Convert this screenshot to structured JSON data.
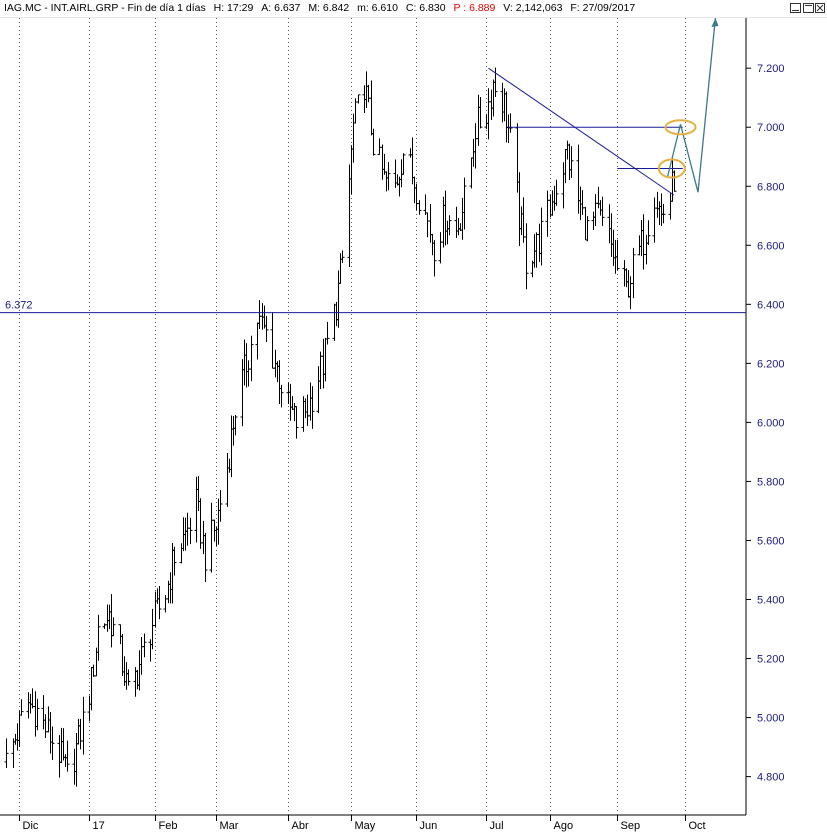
{
  "header": {
    "symbol": "IAG.MC - INT.AIRL.GRP - Fin de día 1 días",
    "h": "H: 17:29",
    "a": "A: 6.637",
    "m": "M: 6.842",
    "mn": "m: 6.610",
    "c": "C: 6.830",
    "p": "P : 6.889",
    "v": "V: 2,142,063",
    "f": "F: 27/09/2017"
  },
  "window_controls": [
    "minimize-icon",
    "restore-icon",
    "close-icon"
  ],
  "colors": {
    "price_bars": "#000000",
    "axis_text": "#1a1a80",
    "support_line": "#1a1a9a",
    "trend_line": "#1a1a9a",
    "projection": "#3a7a8a",
    "highlight": "#e8b040",
    "p_value": "#e00000"
  },
  "chart_data": {
    "type": "ohlc",
    "title": "IAG.MC - INT.AIRL.GRP - Fin de día 1 días",
    "y_ticks": [
      7.2,
      7.0,
      6.8,
      6.6,
      6.4,
      6.2,
      6.0,
      5.8,
      5.6,
      5.4,
      5.2,
      5.0,
      4.8
    ],
    "y_tick_labels": [
      "7.200",
      "7.000",
      "6.800",
      "6.600",
      "6.400",
      "6.200",
      "6.000",
      "5.800",
      "5.600",
      "5.400",
      "5.200",
      "5.000",
      "4.800"
    ],
    "ylim": [
      4.67,
      7.37
    ],
    "x_labels": [
      "Dic",
      "17",
      "Feb",
      "Mar",
      "Abr",
      "May",
      "Jun",
      "Jul",
      "Ago",
      "Sep",
      "Oct"
    ],
    "x_label_dates": [
      "2016-12-01",
      "2017-01-02",
      "2017-02-01",
      "2017-03-01",
      "2017-04-03",
      "2017-05-02",
      "2017-06-01",
      "2017-07-03",
      "2017-08-01",
      "2017-09-01",
      "2017-10-02"
    ],
    "date_range": [
      "2016-11-24",
      "2017-10-30"
    ],
    "grid": {
      "vertical": true,
      "horizontal": false,
      "style": "dotted"
    },
    "support_line": {
      "value": 6.372,
      "label": "6.372"
    },
    "resistance_lines": [
      {
        "value": 7.0,
        "from": "2017-07-13",
        "to": "2017-10-01"
      },
      {
        "value": 6.86,
        "from": "2017-09-01",
        "to": "2017-10-01"
      }
    ],
    "trend_line": {
      "from": {
        "date": "2017-07-04",
        "value": 7.2
      },
      "to": {
        "date": "2017-09-27",
        "value": 6.77
      }
    },
    "highlights": [
      {
        "date": "2017-09-26",
        "value": 6.86
      },
      {
        "date": "2017-09-30",
        "value": 7.0
      }
    ],
    "projection_path": [
      {
        "date": "2017-09-24",
        "value": 6.83
      },
      {
        "date": "2017-09-30",
        "value": 7.01
      },
      {
        "date": "2017-10-08",
        "value": 6.78
      },
      {
        "date": "2017-10-16",
        "value": 7.37
      }
    ],
    "price_series": [
      {
        "d": "2016-11-25",
        "c": 4.85
      },
      {
        "d": "2016-11-30",
        "c": 4.95
      },
      {
        "d": "2016-12-05",
        "c": 5.05
      },
      {
        "d": "2016-12-09",
        "c": 5.02
      },
      {
        "d": "2016-12-14",
        "c": 4.95
      },
      {
        "d": "2016-12-19",
        "c": 4.88
      },
      {
        "d": "2016-12-23",
        "c": 4.8
      },
      {
        "d": "2016-12-28",
        "c": 4.92
      },
      {
        "d": "2017-01-03",
        "c": 5.12
      },
      {
        "d": "2017-01-06",
        "c": 5.3
      },
      {
        "d": "2017-01-11",
        "c": 5.35
      },
      {
        "d": "2017-01-16",
        "c": 5.22
      },
      {
        "d": "2017-01-20",
        "c": 5.08
      },
      {
        "d": "2017-01-25",
        "c": 5.18
      },
      {
        "d": "2017-01-31",
        "c": 5.32
      },
      {
        "d": "2017-02-06",
        "c": 5.42
      },
      {
        "d": "2017-02-10",
        "c": 5.55
      },
      {
        "d": "2017-02-15",
        "c": 5.62
      },
      {
        "d": "2017-02-20",
        "c": 5.72
      },
      {
        "d": "2017-02-24",
        "c": 5.55
      },
      {
        "d": "2017-03-01",
        "c": 5.65
      },
      {
        "d": "2017-03-06",
        "c": 5.85
      },
      {
        "d": "2017-03-10",
        "c": 6.05
      },
      {
        "d": "2017-03-15",
        "c": 6.2
      },
      {
        "d": "2017-03-20",
        "c": 6.35
      },
      {
        "d": "2017-03-24",
        "c": 6.3
      },
      {
        "d": "2017-03-29",
        "c": 6.18
      },
      {
        "d": "2017-04-03",
        "c": 6.05
      },
      {
        "d": "2017-04-07",
        "c": 6.0
      },
      {
        "d": "2017-04-12",
        "c": 6.05
      },
      {
        "d": "2017-04-19",
        "c": 6.2
      },
      {
        "d": "2017-04-25",
        "c": 6.4
      },
      {
        "d": "2017-04-28",
        "c": 6.55
      },
      {
        "d": "2017-05-03",
        "c": 7.0
      },
      {
        "d": "2017-05-08",
        "c": 7.15
      },
      {
        "d": "2017-05-12",
        "c": 6.95
      },
      {
        "d": "2017-05-17",
        "c": 6.82
      },
      {
        "d": "2017-05-22",
        "c": 6.8
      },
      {
        "d": "2017-05-26",
        "c": 6.92
      },
      {
        "d": "2017-06-01",
        "c": 6.8
      },
      {
        "d": "2017-06-06",
        "c": 6.68
      },
      {
        "d": "2017-06-09",
        "c": 6.6
      },
      {
        "d": "2017-06-14",
        "c": 6.7
      },
      {
        "d": "2017-06-19",
        "c": 6.65
      },
      {
        "d": "2017-06-23",
        "c": 6.75
      },
      {
        "d": "2017-06-28",
        "c": 7.0
      },
      {
        "d": "2017-07-03",
        "c": 7.05
      },
      {
        "d": "2017-07-06",
        "c": 7.15
      },
      {
        "d": "2017-07-11",
        "c": 7.08
      },
      {
        "d": "2017-07-14",
        "c": 6.95
      },
      {
        "d": "2017-07-18",
        "c": 6.7
      },
      {
        "d": "2017-07-21",
        "c": 6.55
      },
      {
        "d": "2017-07-26",
        "c": 6.6
      },
      {
        "d": "2017-07-31",
        "c": 6.7
      },
      {
        "d": "2017-08-04",
        "c": 6.8
      },
      {
        "d": "2017-08-09",
        "c": 6.92
      },
      {
        "d": "2017-08-14",
        "c": 6.75
      },
      {
        "d": "2017-08-18",
        "c": 6.65
      },
      {
        "d": "2017-08-23",
        "c": 6.7
      },
      {
        "d": "2017-08-28",
        "c": 6.62
      },
      {
        "d": "2017-09-01",
        "c": 6.52
      },
      {
        "d": "2017-09-05",
        "c": 6.45
      },
      {
        "d": "2017-09-08",
        "c": 6.52
      },
      {
        "d": "2017-09-13",
        "c": 6.62
      },
      {
        "d": "2017-09-18",
        "c": 6.78
      },
      {
        "d": "2017-09-21",
        "c": 6.7
      },
      {
        "d": "2017-09-25",
        "c": 6.76
      },
      {
        "d": "2017-09-27",
        "c": 6.83
      }
    ]
  }
}
